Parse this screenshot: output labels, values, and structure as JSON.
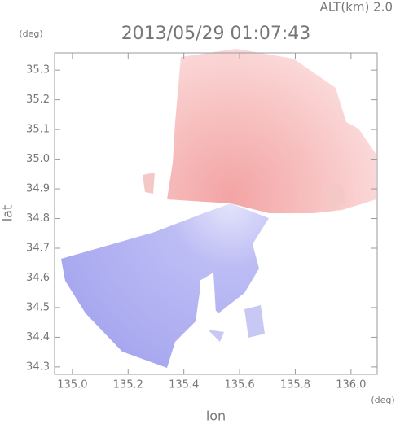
{
  "chart_data": {
    "type": "map",
    "title": "2013/05/29 01:07:43",
    "annotation": "ALT(km) 2.0",
    "xlabel": "lon",
    "ylabel": "lat",
    "x_unit": "(deg)",
    "y_unit": "(deg)",
    "xlim": [
      134.936,
      136.094
    ],
    "xticks": [
      {
        "value": 135,
        "label": "135.0"
      },
      135.2,
      135.4,
      135.6,
      135.8,
      {
        "value": 136,
        "label": "136.0"
      }
    ],
    "ylim": [
      34.275,
      35.358
    ],
    "yticks": [
      34.3,
      34.4,
      34.5,
      34.6,
      34.7,
      34.8,
      34.9,
      {
        "value": 35,
        "label": "35.0"
      },
      35.1,
      35.2,
      35.3
    ]
  }
}
